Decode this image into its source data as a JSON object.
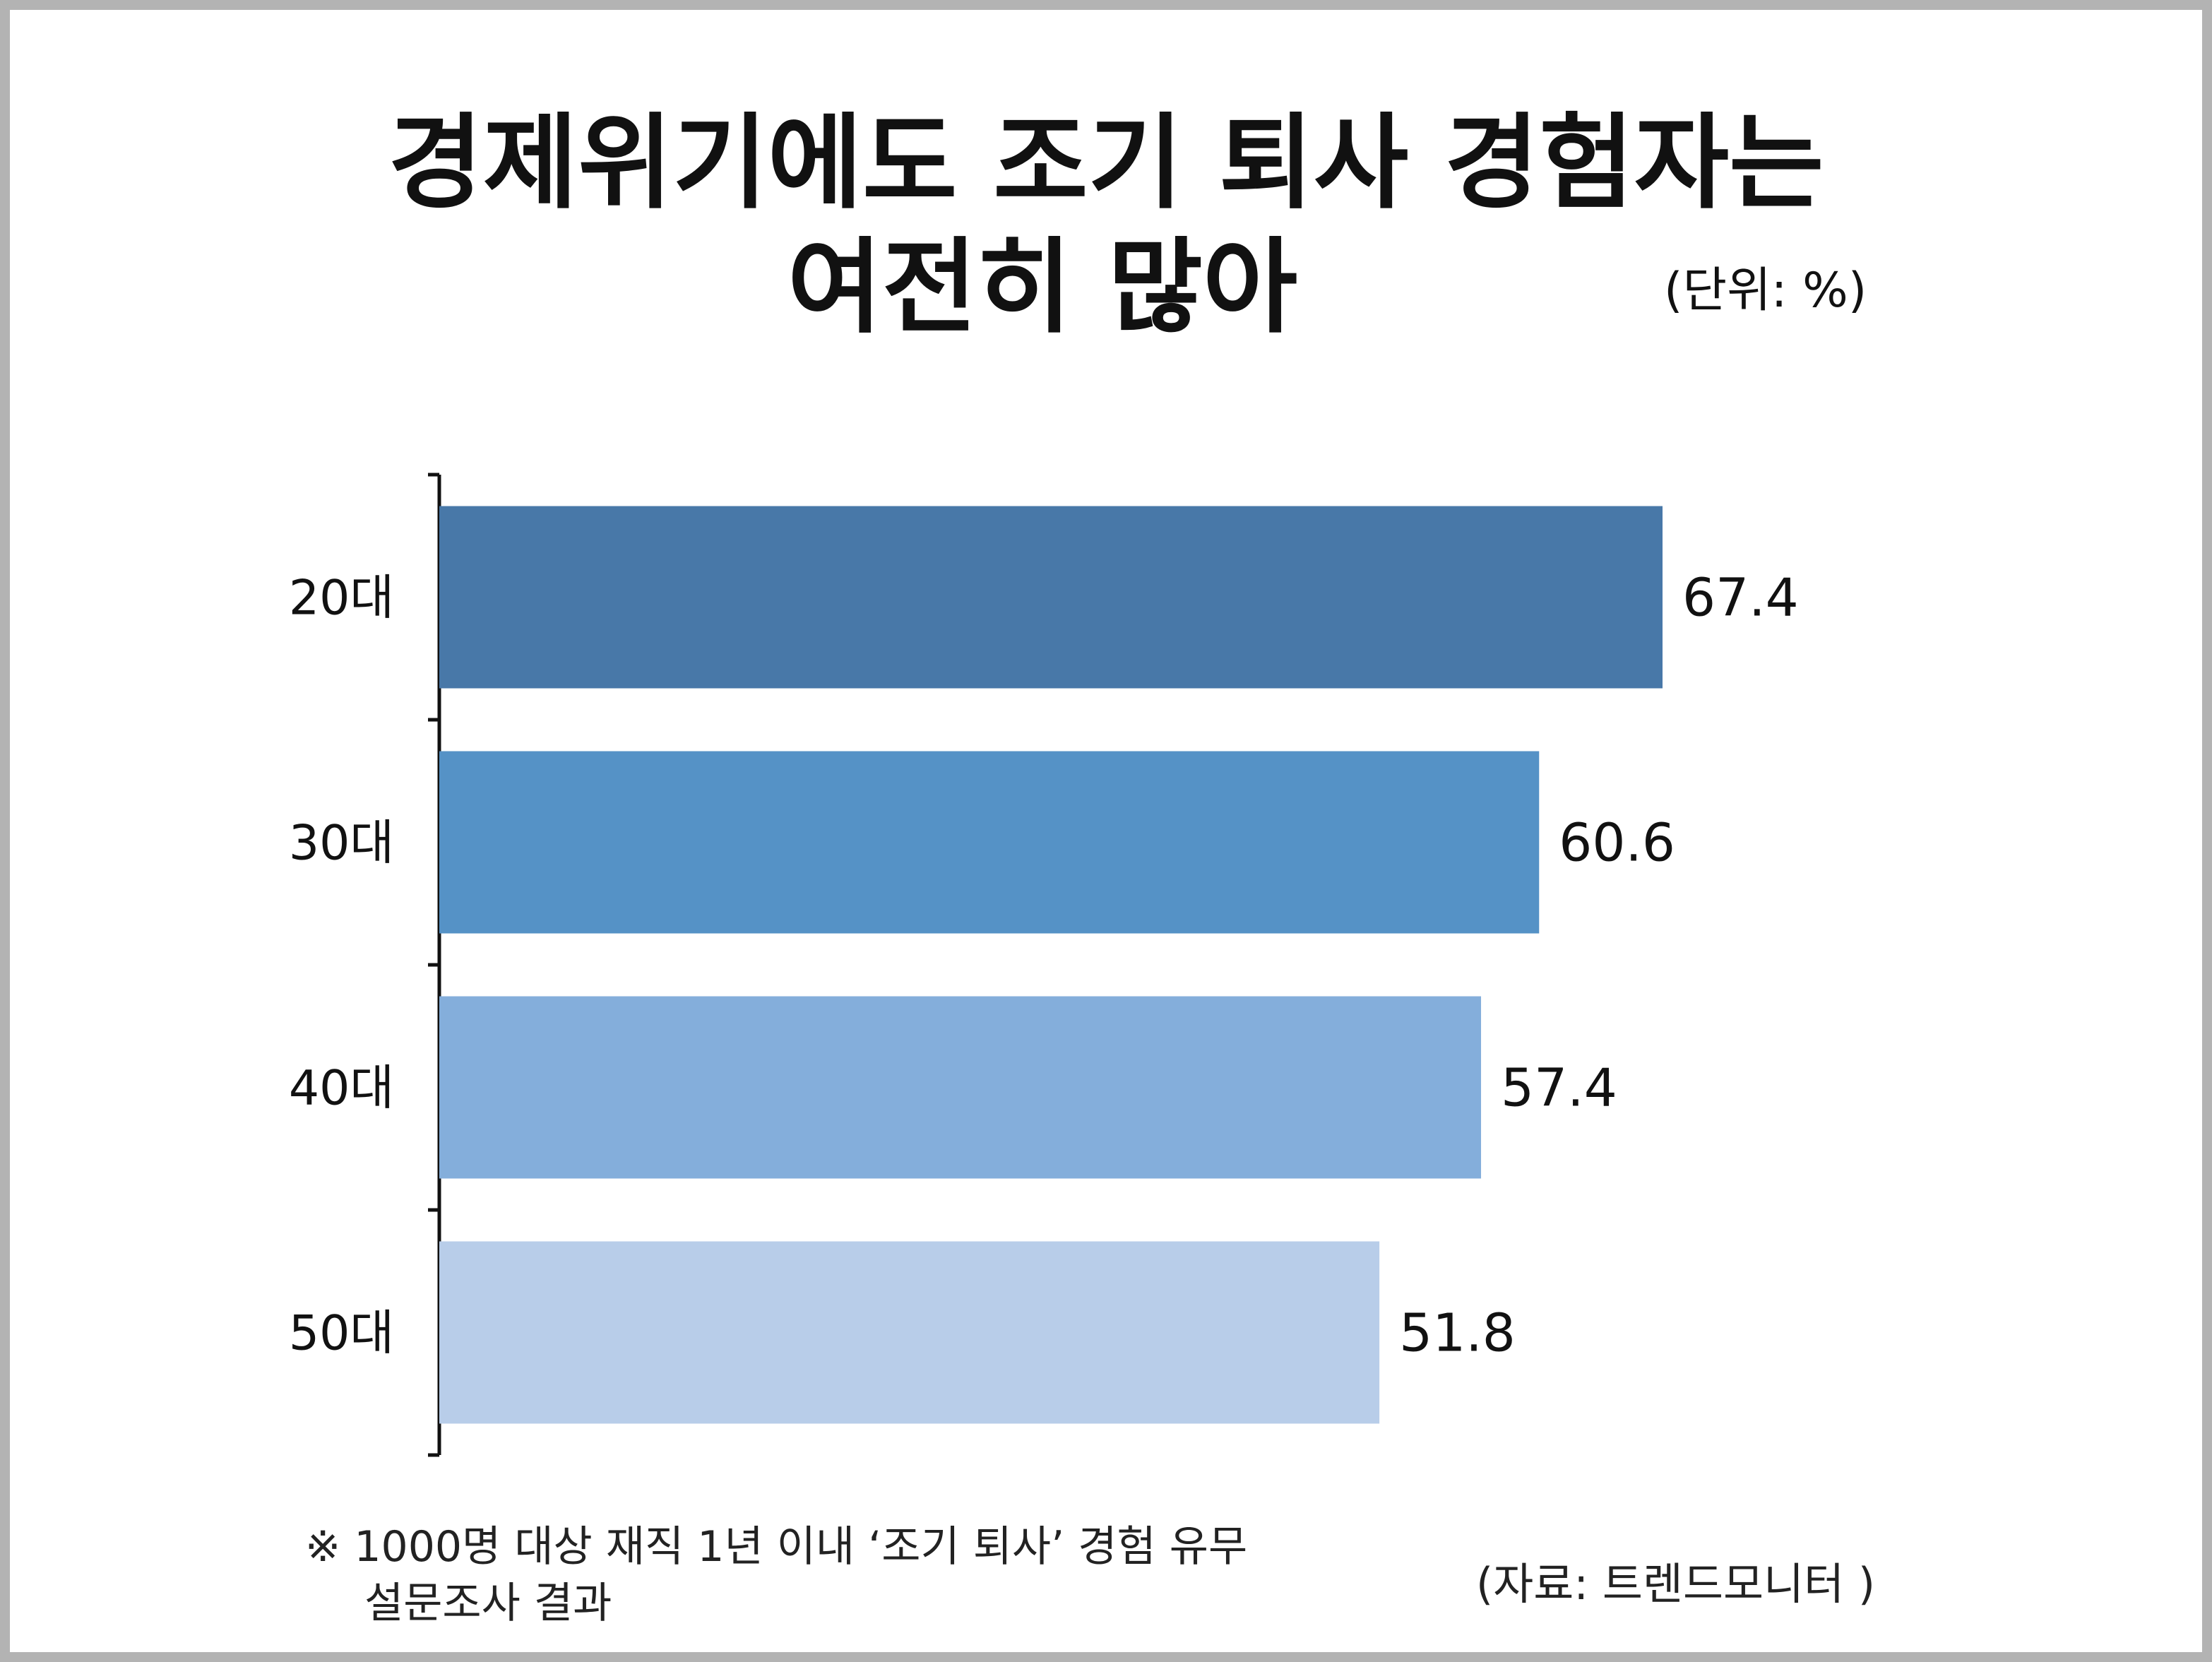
{
  "title_line1": "경제위기에도 조기 퇴사 경험자는",
  "title_line2": "여전히 많아",
  "unit": "(단위: %)",
  "note_symbol": "※",
  "note_line1": "1000명 대상 재직 1년 이내 ‘조기 퇴사’ 경험 유무",
  "note_line2": "설문조사 결과",
  "source": "(자료: 트렌드모니터 )",
  "colors": [
    "#4878a8",
    "#5592c6",
    "#84aedb",
    "#b8cde9"
  ],
  "chart_data": {
    "type": "bar",
    "orientation": "horizontal",
    "categories": [
      "20대",
      "30대",
      "40대",
      "50대"
    ],
    "values": [
      67.4,
      60.6,
      57.4,
      51.8
    ],
    "data_labels": [
      "67.4",
      "60.6",
      "57.4",
      "51.8"
    ],
    "title": "경제위기에도 조기 퇴사 경험자는 여전히 많아",
    "xlabel": "",
    "ylabel": "",
    "grid": false,
    "legend": "none"
  }
}
